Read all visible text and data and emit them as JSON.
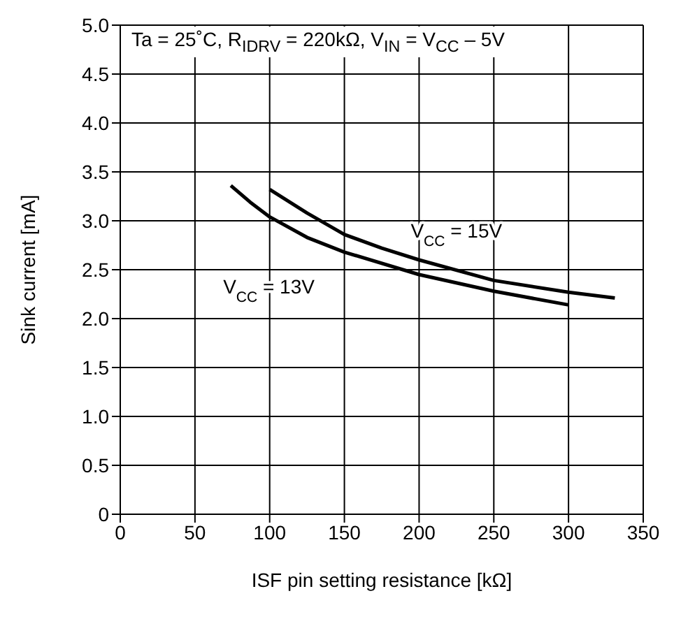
{
  "chart_data": {
    "type": "line",
    "title": "Ta = 25˚C, R$_{IDRV}$ = 220kΩ, V$_{IN}$ = V$_{CC}$ – 5V",
    "xlabel": "ISF pin setting resistance [kΩ]",
    "ylabel": "Sink current [mA]",
    "series": [
      {
        "name": "V$_{CC}$ = 15V",
        "color": "#000000",
        "x": [
          100,
          125,
          150,
          175,
          200,
          250,
          300,
          331
        ],
        "values": [
          3.32,
          3.08,
          2.86,
          2.72,
          2.6,
          2.39,
          2.27,
          2.21
        ]
      },
      {
        "name": "V$_{CC}$ = 13V",
        "color": "#000000",
        "x": [
          74,
          87,
          100,
          125,
          150,
          200,
          250,
          300
        ],
        "values": [
          3.36,
          3.19,
          3.04,
          2.83,
          2.68,
          2.45,
          2.28,
          2.14
        ]
      }
    ],
    "xlim": [
      0,
      350
    ],
    "xticks": [
      0,
      50,
      100,
      150,
      200,
      250,
      300,
      350
    ],
    "ylim": [
      0,
      5
    ],
    "yticks": [
      0,
      0.5,
      {
        "value": 1,
        "label": "1.0"
      },
      1.5,
      {
        "value": 2,
        "label": "2.0"
      },
      2.5,
      {
        "value": 3,
        "label": "3.0"
      },
      3.5,
      {
        "value": 4,
        "label": "4.0"
      },
      4.5,
      {
        "value": 5,
        "label": "5.0"
      }
    ],
    "grid": true,
    "marker": "none",
    "line_style": "solid"
  }
}
